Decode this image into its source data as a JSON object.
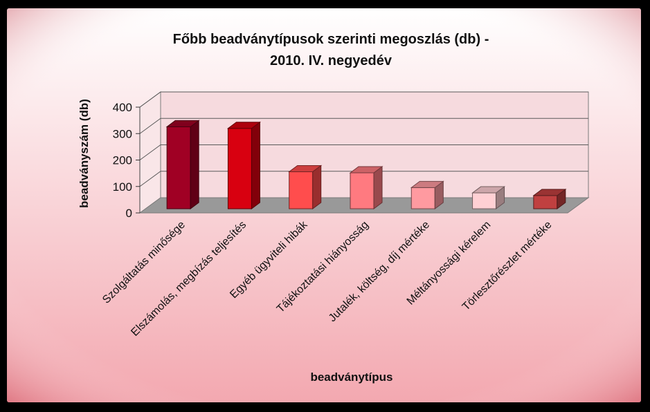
{
  "chart_data": {
    "type": "bar",
    "title_lines": [
      "Főbb beadványtípusok szerinti megoszlás (db) -",
      "2010. IV. negyedév"
    ],
    "xlabel": "beadványtípus",
    "ylabel": "beadványszám (db)",
    "ylim": [
      0,
      400
    ],
    "yticks": [
      "0",
      "100",
      "200",
      "300",
      "400"
    ],
    "grid": true,
    "three_d": true,
    "categories": [
      "Szolgáltatás minősége",
      "Elszámolás, megbízás teljesítés",
      "Egyéb ügyviteli hibák",
      "Tájékoztatási hiányosság",
      "Jutalék, költség, díj mértéke",
      "Méltányossági kérelem",
      "Törlesztőrészlet mértéke"
    ],
    "values": [
      310,
      304,
      140,
      136,
      80,
      60,
      50
    ],
    "bar_colors": [
      "#A00024",
      "#D80010",
      "#FF4D4D",
      "#FF7A80",
      "#FF9AA0",
      "#FFD0D4",
      "#C04040"
    ],
    "colors": {
      "background_top": "#FFFFFF",
      "background_bottom": "#F3A8B0",
      "frame": "#000000"
    }
  }
}
